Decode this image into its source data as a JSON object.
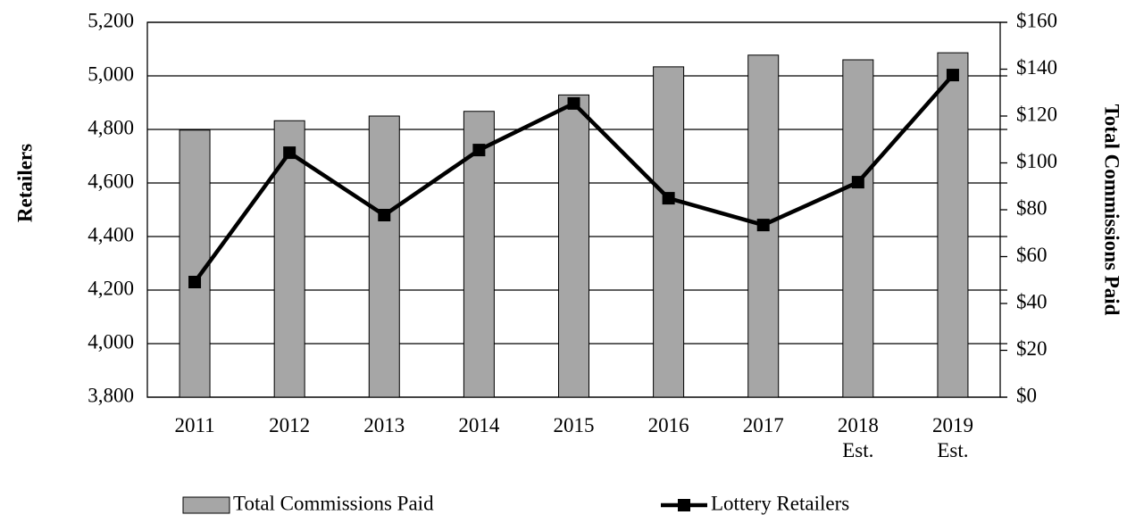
{
  "chart_data": {
    "type": "bar-line",
    "categories": [
      "2011",
      "2012",
      "2013",
      "2014",
      "2015",
      "2016",
      "2017",
      "2018 Est.",
      "2019 Est."
    ],
    "ylabel": "Retailers",
    "y2label": "Total Commissions Paid",
    "ylim": [
      3800,
      5200
    ],
    "yticks": [
      {
        "value": 3800,
        "label": "3,800"
      },
      {
        "value": 4000,
        "label": "4,000"
      },
      {
        "value": 4200,
        "label": "4,200"
      },
      {
        "value": 4400,
        "label": "4,400"
      },
      {
        "value": 4600,
        "label": "4,600"
      },
      {
        "value": 4800,
        "label": "4,800"
      },
      {
        "value": 5000,
        "label": "5,000"
      },
      {
        "value": 5200,
        "label": "5,200"
      }
    ],
    "y2lim": [
      0,
      160
    ],
    "y2ticks": [
      {
        "value": 0,
        "label": "$0"
      },
      {
        "value": 20,
        "label": "$20"
      },
      {
        "value": 40,
        "label": "$40"
      },
      {
        "value": 60,
        "label": "$60"
      },
      {
        "value": 80,
        "label": "$80"
      },
      {
        "value": 100,
        "label": "$100"
      },
      {
        "value": 120,
        "label": "$120"
      },
      {
        "value": 140,
        "label": "$140"
      },
      {
        "value": 160,
        "label": "$160"
      }
    ],
    "grid": true,
    "legend": "bottom",
    "series": [
      {
        "name": "Total Commissions Paid",
        "type": "bar",
        "axis": "y2",
        "color": "#a6a6a6",
        "values": [
          114,
          118,
          120,
          122,
          129,
          141,
          146,
          144,
          147
        ]
      },
      {
        "name": "Lottery Retailers",
        "type": "line",
        "axis": "y",
        "color": "#000000",
        "values": [
          4230,
          4713,
          4480,
          4723,
          4897,
          4543,
          4443,
          4603,
          5003
        ]
      }
    ]
  }
}
